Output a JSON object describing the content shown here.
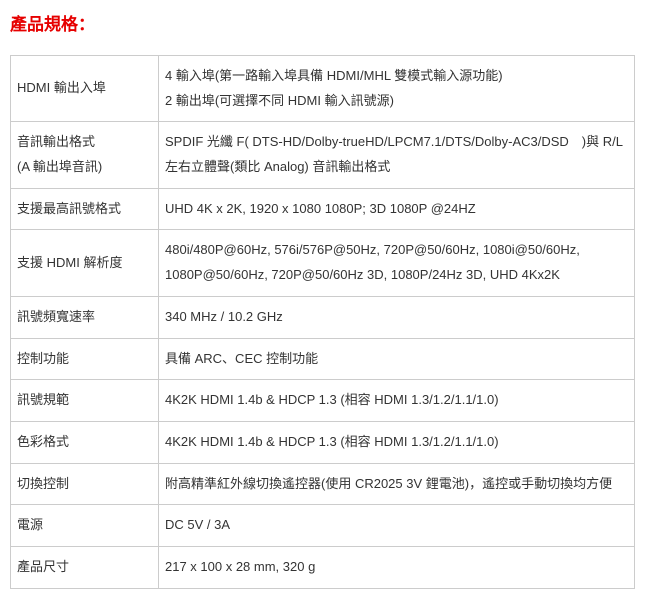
{
  "title": {
    "text": "產品規格：",
    "color": "#e60000",
    "fontsize": 17
  },
  "table": {
    "border_color": "#cccccc",
    "rows": [
      {
        "label": "HDMI 輸出入埠",
        "value": "4 輸入埠(第一路輸入埠具備 HDMI/MHL 雙模式輸入源功能)\n2 輸出埠(可選擇不同 HDMI 輸入訊號源)"
      },
      {
        "label": "音訊輸出格式\n(A 輸出埠音訊)",
        "value": "SPDIF 光纖 F( DTS-HD/Dolby-trueHD/LPCM7.1/DTS/Dolby-AC3/DSD　)與 R/L 左右立體聲(類比 Analog) 音訊輸出格式"
      },
      {
        "label": "支援最高訊號格式",
        "value": "UHD 4K x 2K, 1920 x 1080 1080P; 3D 1080P @24HZ"
      },
      {
        "label": "支援 HDMI 解析度",
        "value": "480i/480P@60Hz, 576i/576P@50Hz, 720P@50/60Hz, 1080i@50/60Hz, 1080P@50/60Hz, 720P@50/60Hz 3D, 1080P/24Hz 3D, UHD 4Kx2K"
      },
      {
        "label": "訊號頻寬速率",
        "value": "340 MHz / 10.2 GHz"
      },
      {
        "label": "控制功能",
        "value": "具備 ARC、CEC 控制功能"
      },
      {
        "label": "訊號規範",
        "value": "4K2K HDMI 1.4b & HDCP 1.3 (相容 HDMI 1.3/1.2/1.1/1.0)"
      },
      {
        "label": "色彩格式",
        "value": "4K2K HDMI 1.4b & HDCP 1.3 (相容 HDMI 1.3/1.2/1.1/1.0)"
      },
      {
        "label": "切換控制",
        "value": "附高精準紅外線切換遙控器(使用 CR2025 3V 鋰電池)，遙控或手動切換均方便"
      },
      {
        "label": "電源",
        "value": "DC 5V / 3A"
      },
      {
        "label": "產品尺寸",
        "value": "217 x 100 x 28 mm, 320 g"
      }
    ]
  }
}
